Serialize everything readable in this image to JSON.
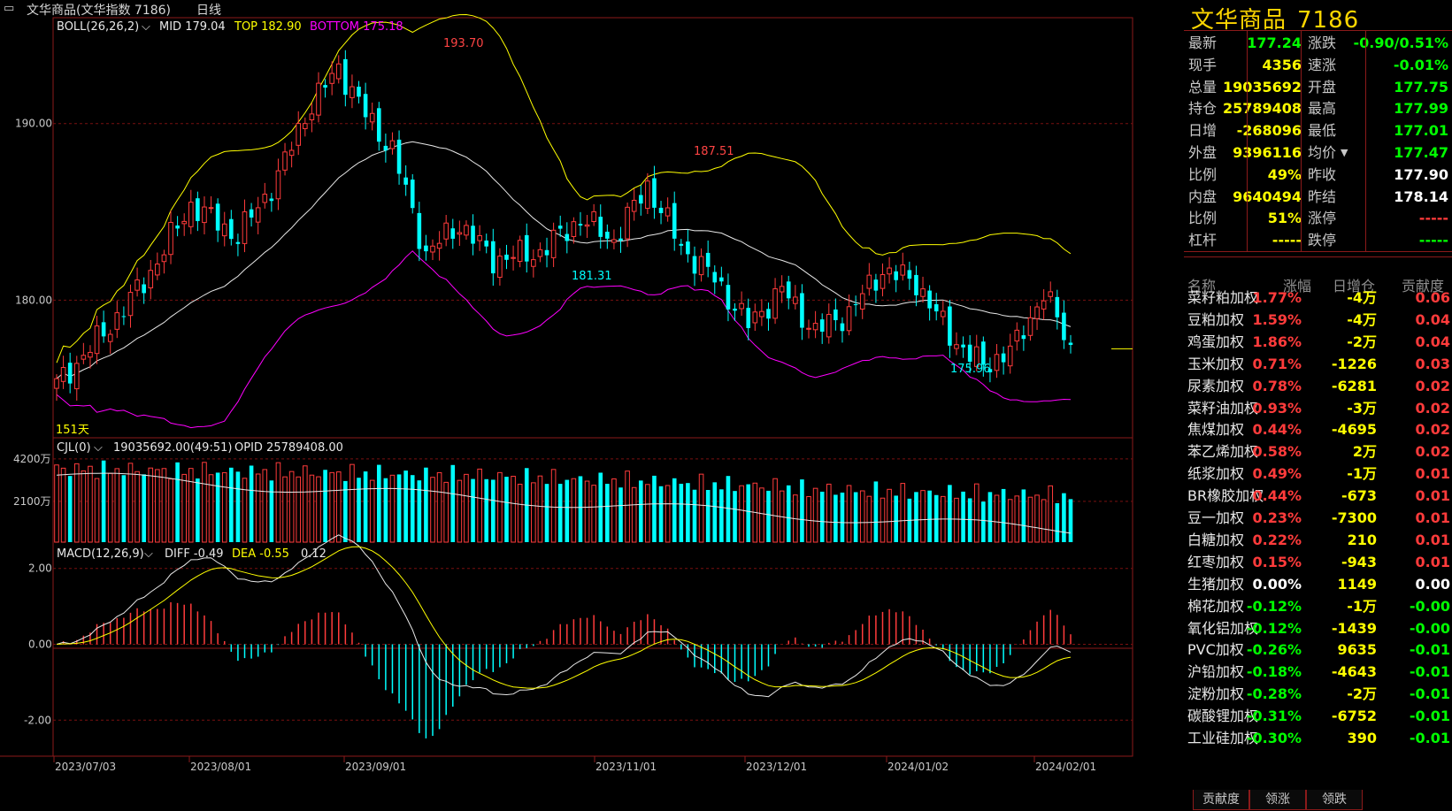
{
  "window": {
    "title": "文华商品(文华指数 7186)",
    "period": "日线"
  },
  "colors": {
    "up": "#ff3b3b",
    "down": "#00ffff",
    "yellow": "#ffff00",
    "magenta": "#ff00ff",
    "white": "#e8e8e8"
  },
  "boll": {
    "label": "BOLL(26,26,2)",
    "mid": "MID 179.04",
    "top": "TOP 182.90",
    "bottom": "BOTTOM 175.18"
  },
  "cjl": {
    "label": "CJL(0)",
    "vol": "19035692.00(49:51)",
    "opid": "OPID 25789408.00"
  },
  "macd": {
    "label": "MACD(12,26,9)",
    "diff": "DIFF -0.49",
    "dea": "DEA -0.55",
    "macd": "0.12"
  },
  "day_count": "151天",
  "chart_data": [
    {
      "type": "candlestick",
      "name": "price",
      "y_ticks": [
        "190.00",
        "180.00"
      ],
      "annotations": {
        "max": "193.70",
        "peak2": "187.51",
        "low1": "181.31",
        "low2": "175.96"
      },
      "x_ticks": [
        "2023/07/03",
        "2023/08/01",
        "2023/09/01",
        "2023/11/01",
        "2023/12/01",
        "2024/01/02",
        "2024/02/01"
      ],
      "key_points": [
        {
          "date": "2023/07/03",
          "close": 175.5
        },
        {
          "date": "2023/08/01",
          "close": 184.3
        },
        {
          "date": "2023/09/01",
          "close": 191.0
        },
        {
          "date": "2023/09/13",
          "high": 193.7
        },
        {
          "date": "2023/10/23",
          "low": 181.31
        },
        {
          "date": "2023/11/14",
          "high": 187.51
        },
        {
          "date": "2023/12/01",
          "close": 182.3
        },
        {
          "date": "2024/01/02",
          "close": 181.7
        },
        {
          "date": "2024/01/15",
          "low": 175.96
        },
        {
          "date": "2024/02/01",
          "close": 177.24
        }
      ],
      "boll_last": {
        "mid": 179.04,
        "top": 182.9,
        "bottom": 175.18
      }
    },
    {
      "type": "bar",
      "name": "volume",
      "y_ticks": [
        "4200万",
        "2100万"
      ],
      "last": 19035692
    },
    {
      "type": "bar",
      "name": "macd",
      "y_ticks": [
        "2.00",
        "0.00",
        "-2.00"
      ],
      "last": {
        "diff": -0.49,
        "dea": -0.55,
        "macd": 0.12
      }
    }
  ],
  "quote": {
    "title": "文华商品",
    "code": "7186",
    "rows": [
      {
        "l1": "最新",
        "v1": "177.24",
        "c1": "#00ff00",
        "l2": "涨跌",
        "v2": "-0.90/0.51%",
        "c2": "#00ff00"
      },
      {
        "l1": "现手",
        "v1": "4356",
        "c1": "#ffff00",
        "l2": "速涨",
        "v2": "-0.01%",
        "c2": "#00ff00"
      },
      {
        "l1": "总量",
        "v1": "19035692",
        "c1": "#ffff00",
        "l2": "开盘",
        "v2": "177.75",
        "c2": "#00ff00"
      },
      {
        "l1": "持仓",
        "v1": "25789408",
        "c1": "#ffff00",
        "l2": "最高",
        "v2": "177.99",
        "c2": "#00ff00"
      },
      {
        "l1": "日增",
        "v1": "-268096",
        "c1": "#ffff00",
        "l2": "最低",
        "v2": "177.01",
        "c2": "#00ff00"
      },
      {
        "l1": "外盘",
        "v1": "9396116",
        "c1": "#ffff00",
        "l2": "均价",
        "v2": "177.47",
        "c2": "#00ff00"
      },
      {
        "l1": "比例",
        "v1": "49%",
        "c1": "#ffff00",
        "l2": "昨收",
        "v2": "177.90",
        "c2": "#ffffff"
      },
      {
        "l1": "内盘",
        "v1": "9640494",
        "c1": "#ffff00",
        "l2": "昨结",
        "v2": "178.14",
        "c2": "#ffffff"
      },
      {
        "l1": "比例",
        "v1": "51%",
        "c1": "#ffff00",
        "l2": "涨停",
        "v2": "-----",
        "c2": "#ff3b3b"
      },
      {
        "l1": "杠杆",
        "v1": "-----",
        "c1": "#ffff00",
        "l2": "跌停",
        "v2": "-----",
        "c2": "#00ff00"
      }
    ]
  },
  "list": {
    "headers": [
      "名称",
      "涨幅",
      "日增仓",
      "贡献度"
    ],
    "rows": [
      {
        "name": "菜籽粕加权",
        "chg": "1.77%",
        "oi": "-4万",
        "contrib": "0.06",
        "c": "#ff3b3b"
      },
      {
        "name": "豆粕加权",
        "chg": "1.59%",
        "oi": "-4万",
        "contrib": "0.04",
        "c": "#ff3b3b"
      },
      {
        "name": "鸡蛋加权",
        "chg": "1.86%",
        "oi": "-2万",
        "contrib": "0.04",
        "c": "#ff3b3b"
      },
      {
        "name": "玉米加权",
        "chg": "0.71%",
        "oi": "-1226",
        "contrib": "0.03",
        "c": "#ff3b3b"
      },
      {
        "name": "尿素加权",
        "chg": "0.78%",
        "oi": "-6281",
        "contrib": "0.02",
        "c": "#ff3b3b"
      },
      {
        "name": "菜籽油加权",
        "chg": "0.93%",
        "oi": "-3万",
        "contrib": "0.02",
        "c": "#ff3b3b"
      },
      {
        "name": "焦煤加权",
        "chg": "0.44%",
        "oi": "-4695",
        "contrib": "0.02",
        "c": "#ff3b3b"
      },
      {
        "name": "苯乙烯加权",
        "chg": "0.58%",
        "oi": "2万",
        "contrib": "0.02",
        "c": "#ff3b3b"
      },
      {
        "name": "纸浆加权",
        "chg": "0.49%",
        "oi": "-1万",
        "contrib": "0.01",
        "c": "#ff3b3b"
      },
      {
        "name": "BR橡胶加权",
        "chg": "0.44%",
        "oi": "-673",
        "contrib": "0.01",
        "c": "#ff3b3b"
      },
      {
        "name": "豆一加权",
        "chg": "0.23%",
        "oi": "-7300",
        "contrib": "0.01",
        "c": "#ff3b3b"
      },
      {
        "name": "白糖加权",
        "chg": "0.22%",
        "oi": "210",
        "contrib": "0.01",
        "c": "#ff3b3b"
      },
      {
        "name": "红枣加权",
        "chg": "0.15%",
        "oi": "-943",
        "contrib": "0.01",
        "c": "#ff3b3b"
      },
      {
        "name": "生猪加权",
        "chg": "0.00%",
        "oi": "1149",
        "contrib": "0.00",
        "c": "#ffffff"
      },
      {
        "name": "棉花加权",
        "chg": "-0.12%",
        "oi": "-1万",
        "contrib": "-0.00",
        "c": "#00ff00"
      },
      {
        "name": "氧化铝加权",
        "chg": "-0.12%",
        "oi": "-1439",
        "contrib": "-0.00",
        "c": "#00ff00"
      },
      {
        "name": "PVC加权",
        "chg": "-0.26%",
        "oi": "9635",
        "contrib": "-0.01",
        "c": "#00ff00"
      },
      {
        "name": "沪铅加权",
        "chg": "-0.18%",
        "oi": "-4643",
        "contrib": "-0.01",
        "c": "#00ff00"
      },
      {
        "name": "淀粉加权",
        "chg": "-0.28%",
        "oi": "-2万",
        "contrib": "-0.01",
        "c": "#00ff00"
      },
      {
        "name": "碳酸锂加权",
        "chg": "-0.31%",
        "oi": "-6752",
        "contrib": "-0.01",
        "c": "#00ff00"
      },
      {
        "name": "工业硅加权",
        "chg": "-0.30%",
        "oi": "390",
        "contrib": "-0.01",
        "c": "#00ff00"
      }
    ]
  },
  "tabs": [
    "贡献度",
    "领涨",
    "领跌"
  ]
}
